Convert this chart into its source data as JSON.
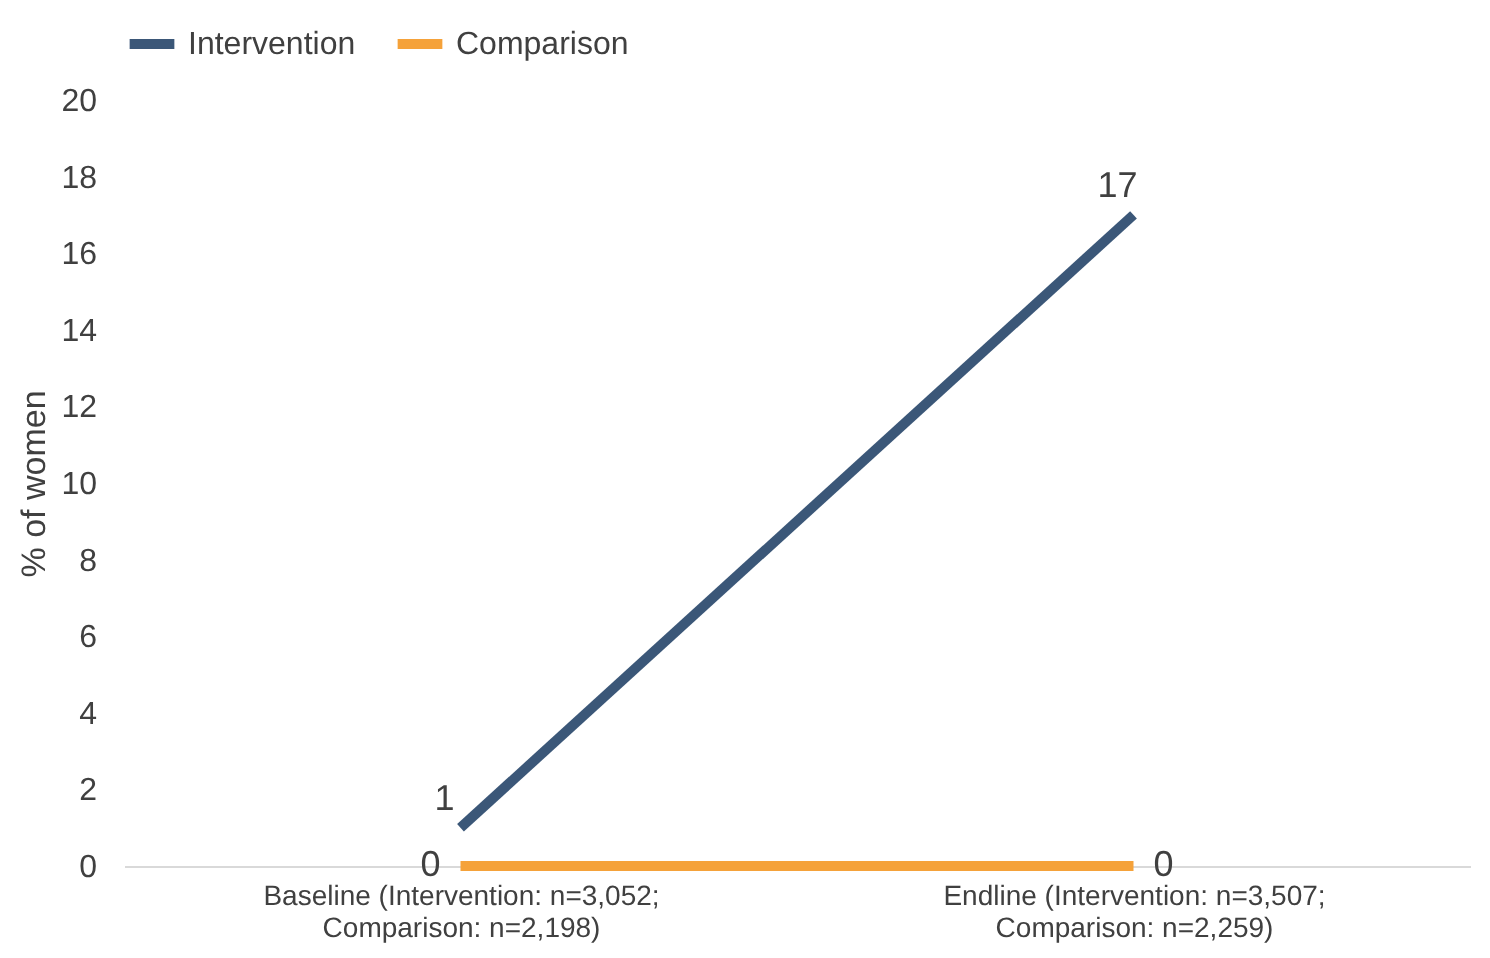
{
  "chart_data": {
    "type": "line",
    "ylabel": "% of women",
    "categories": [
      "Baseline (Intervention: n=3,052;\nComparison: n=2,198)",
      "Endline (Intervention: n=3,507;\nComparison: n=2,259)"
    ],
    "series": [
      {
        "name": "Intervention",
        "color": "#3b5778",
        "values": [
          1,
          17
        ]
      },
      {
        "name": "Comparison",
        "color": "#f5a23a",
        "values": [
          0,
          0
        ]
      }
    ],
    "ylim": [
      0,
      20
    ],
    "yticks": [
      0,
      2,
      4,
      6,
      8,
      10,
      12,
      14,
      16,
      18,
      20
    ],
    "data_labels": true,
    "legend": "top",
    "grid": false,
    "marker": "none",
    "line_style": "solid"
  }
}
